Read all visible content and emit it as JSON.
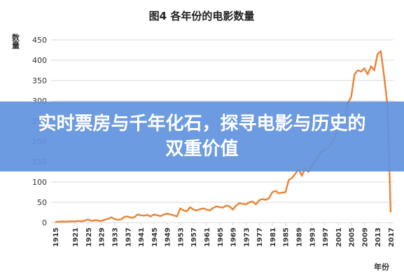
{
  "chart_data": {
    "type": "line",
    "title": "图4 各年份的电影数量",
    "y_label": "数量",
    "x_label": "年份",
    "x": [
      1915,
      1916,
      1917,
      1918,
      1919,
      1920,
      1921,
      1922,
      1923,
      1924,
      1925,
      1926,
      1927,
      1928,
      1929,
      1930,
      1931,
      1932,
      1933,
      1934,
      1935,
      1936,
      1937,
      1938,
      1939,
      1940,
      1941,
      1942,
      1943,
      1944,
      1945,
      1946,
      1947,
      1948,
      1949,
      1950,
      1951,
      1952,
      1953,
      1954,
      1955,
      1956,
      1957,
      1958,
      1959,
      1960,
      1961,
      1962,
      1963,
      1964,
      1965,
      1966,
      1967,
      1968,
      1969,
      1970,
      1971,
      1972,
      1973,
      1974,
      1975,
      1976,
      1977,
      1978,
      1979,
      1980,
      1981,
      1982,
      1983,
      1984,
      1985,
      1986,
      1987,
      1988,
      1989,
      1990,
      1991,
      1992,
      1993,
      1994,
      1995,
      1996,
      1997,
      1998,
      1999,
      2000,
      2001,
      2002,
      2003,
      2004,
      2005,
      2006,
      2007,
      2008,
      2009,
      2010,
      2011,
      2012,
      2013,
      2014,
      2015,
      2016,
      2017
    ],
    "values": [
      2,
      2,
      3,
      2,
      3,
      3,
      3,
      4,
      3,
      5,
      8,
      4,
      6,
      5,
      4,
      7,
      9,
      13,
      9,
      7,
      8,
      14,
      15,
      12,
      13,
      20,
      18,
      17,
      19,
      15,
      20,
      18,
      16,
      20,
      22,
      20,
      18,
      15,
      35,
      30,
      28,
      38,
      32,
      30,
      33,
      35,
      32,
      30,
      36,
      40,
      38,
      37,
      42,
      40,
      32,
      42,
      48,
      46,
      45,
      50,
      52,
      45,
      55,
      58,
      56,
      60,
      75,
      78,
      72,
      74,
      75,
      105,
      110,
      120,
      132,
      115,
      135,
      125,
      140,
      150,
      165,
      175,
      180,
      185,
      195,
      210,
      240,
      265,
      250,
      295,
      310,
      365,
      375,
      372,
      380,
      365,
      385,
      375,
      415,
      422,
      360,
      290,
      25
    ],
    "color": "#e8873a",
    "xlim": [
      1915,
      2017
    ],
    "xticks": [
      1915,
      1921,
      1925,
      1929,
      1933,
      1937,
      1941,
      1945,
      1949,
      1953,
      1957,
      1961,
      1965,
      1969,
      1973,
      1977,
      1981,
      1985,
      1989,
      1993,
      1997,
      2001,
      2005,
      2009,
      2013,
      2017
    ],
    "ylim": [
      0,
      450
    ],
    "yticks": [
      0,
      50,
      100,
      150,
      200,
      250,
      300,
      350,
      400,
      450
    ],
    "grid": true
  },
  "banner": {
    "title": "实时票房与千年化石，探寻电影与历史的双重价值"
  }
}
